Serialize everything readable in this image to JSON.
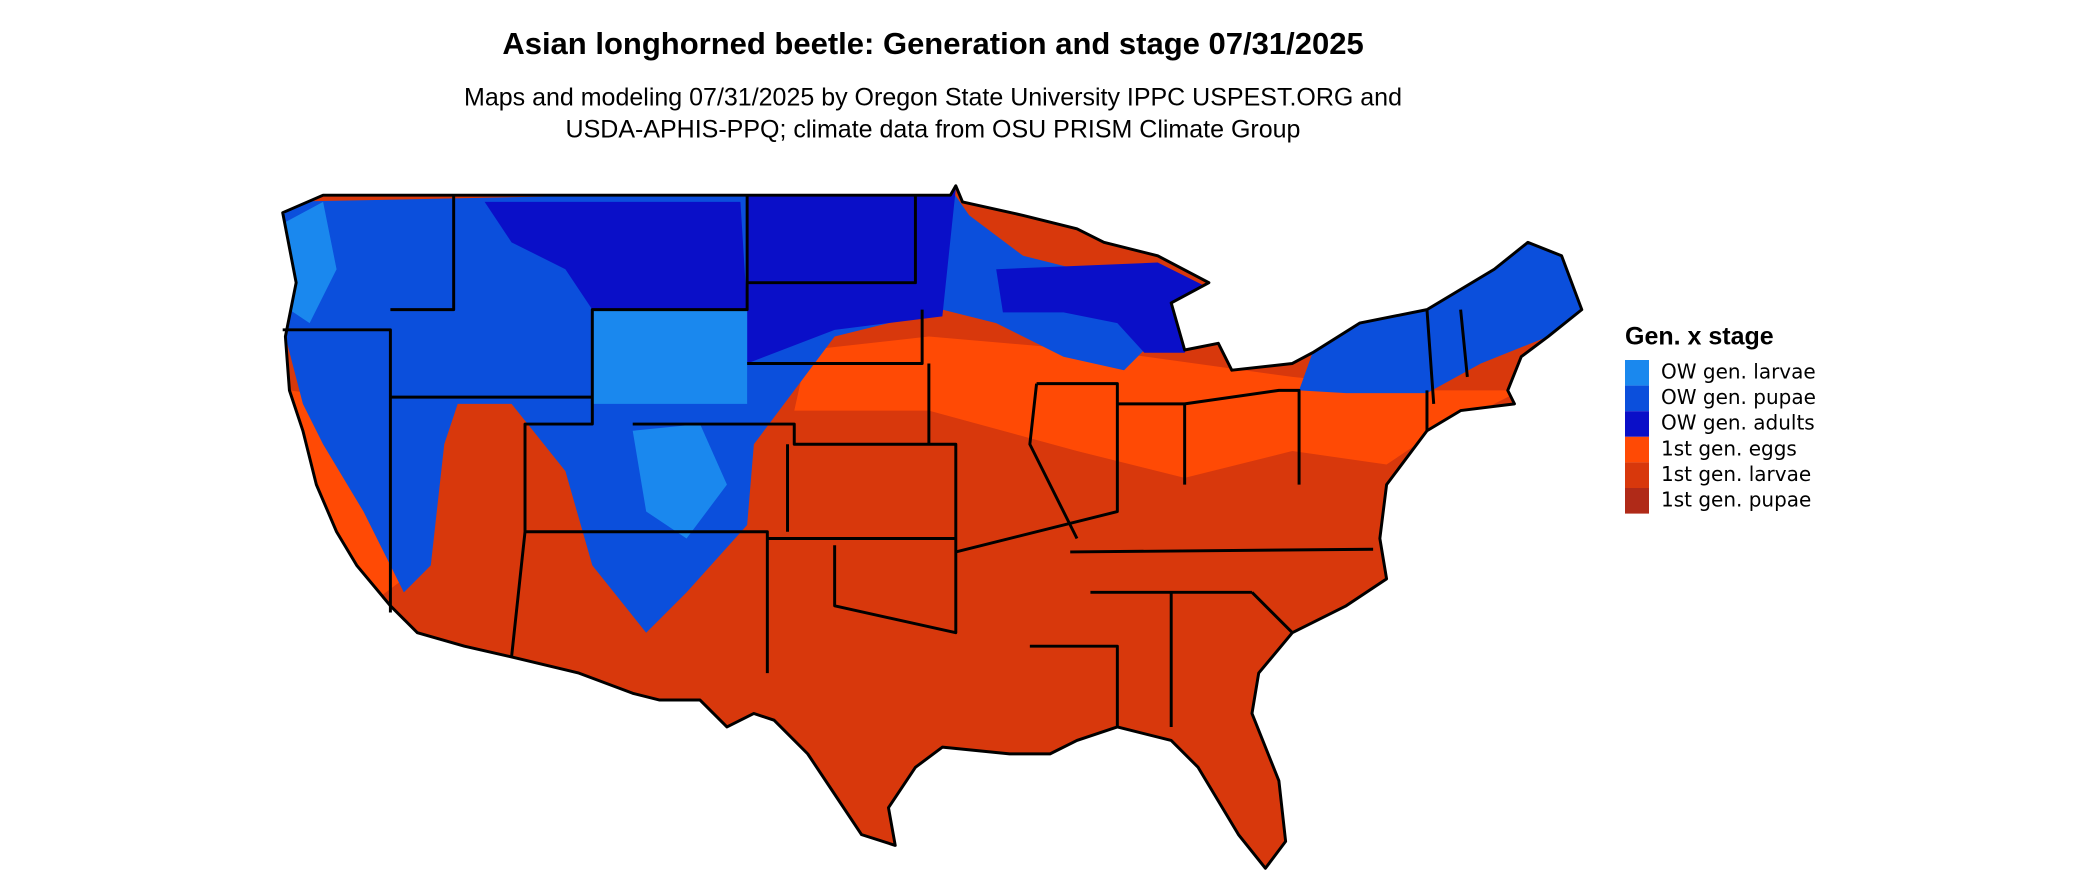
{
  "title": "Asian longhorned beetle: Generation and stage 07/31/2025",
  "subtitle": [
    "Maps and modeling 07/31/2025 by Oregon State University IPPC USPEST.ORG and",
    "USDA-APHIS-PPQ; climate data from OSU PRISM Climate Group"
  ],
  "legend": {
    "title": "Gen. x stage",
    "items": [
      {
        "label": "OW gen. larvae",
        "color": "#1a88ee"
      },
      {
        "label": "OW gen. pupae",
        "color": "#0b4fdc"
      },
      {
        "label": "OW gen. adults",
        "color": "#0a0fc8"
      },
      {
        "label": "1st gen. eggs",
        "color": "#ff4a05"
      },
      {
        "label": "1st gen. larvae",
        "color": "#d8380c"
      },
      {
        "label": "1st gen. pupae",
        "color": "#b02a18"
      }
    ]
  }
}
